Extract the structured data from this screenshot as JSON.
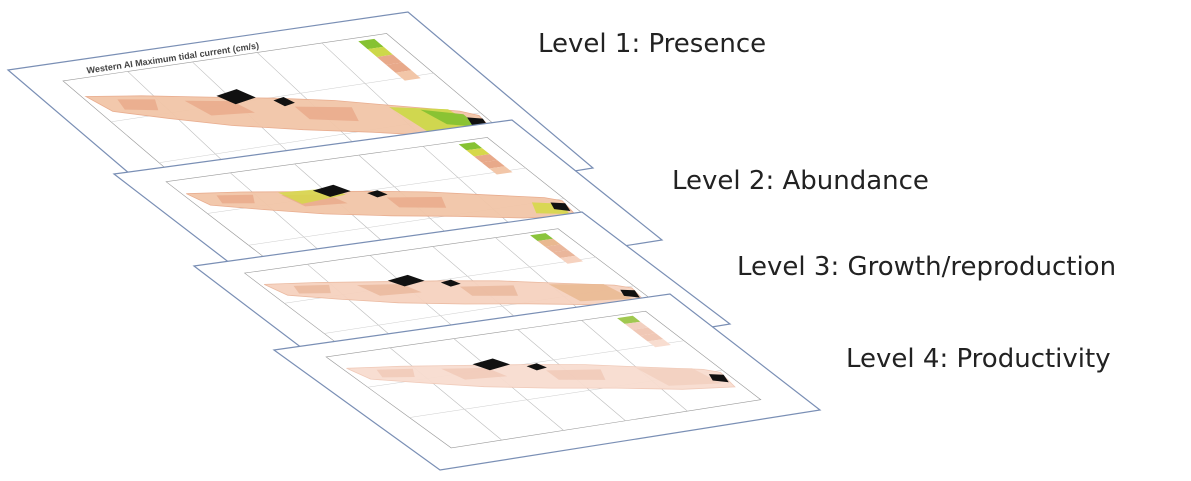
{
  "levels": [
    {
      "label": "Level 1: Presence",
      "map_title": "Western AI Maximum tidal current (cm/s)",
      "colors": [
        "#f2c6a8",
        "#e8a98a",
        "#cdd84a",
        "#86c232"
      ]
    },
    {
      "label": "Level 2: Abundance",
      "map_title": "",
      "colors": [
        "#f2c6a8",
        "#e8a98a",
        "#d6d84a",
        "#86c232"
      ]
    },
    {
      "label": "Level 3: Growth/reproduction",
      "map_title": "",
      "colors": [
        "#f6d2bf",
        "#eab69b",
        "#e9b890",
        "#8bc43c"
      ]
    },
    {
      "label": "Level 4: Productivity",
      "map_title": "",
      "colors": [
        "#f8ddd0",
        "#f0c8b6",
        "#f2d0c0",
        "#a0c850"
      ]
    }
  ],
  "frame_color": "#7a8fb5",
  "land_color": "#111111"
}
